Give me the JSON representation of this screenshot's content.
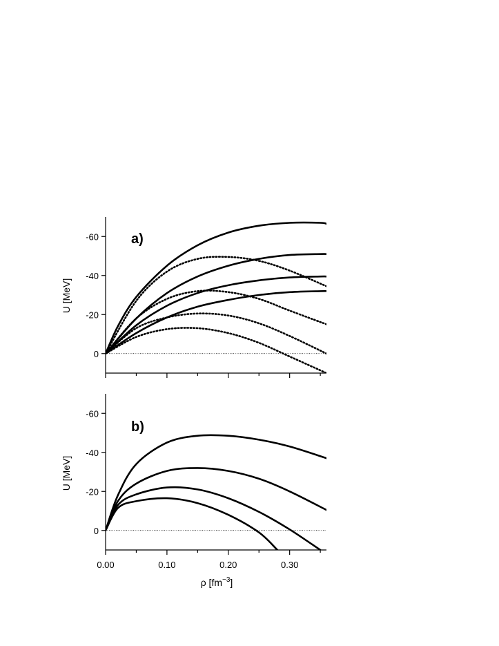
{
  "chart_data": [
    {
      "type": "line",
      "panel_label": "a)",
      "ylabel": "U [MeV]",
      "xlabel": "",
      "xlim": [
        0,
        0.36
      ],
      "ylim": [
        10,
        -70
      ],
      "y_ticks": [
        -60,
        -40,
        -20,
        0
      ],
      "y_tick_labels": [
        "-60",
        "-40",
        "-20",
        "0"
      ],
      "x_ticks": [
        0,
        0.05,
        0.1,
        0.15,
        0.2,
        0.25,
        0.3,
        0.35
      ],
      "x_tick_labels": [],
      "zero_line": true,
      "series": [
        {
          "style": "solid",
          "x": [
            0,
            0.02,
            0.05,
            0.1,
            0.15,
            0.2,
            0.25,
            0.3,
            0.35,
            0.36
          ],
          "y": [
            0,
            -14,
            -29,
            -45,
            -55.5,
            -62,
            -65.5,
            -67,
            -67,
            -66.5
          ]
        },
        {
          "style": "solid",
          "x": [
            0,
            0.05,
            0.1,
            0.15,
            0.2,
            0.25,
            0.3,
            0.35,
            0.36
          ],
          "y": [
            0,
            -18,
            -31,
            -39.5,
            -45,
            -48.5,
            -50.5,
            -51,
            -51
          ]
        },
        {
          "style": "solid",
          "x": [
            0,
            0.05,
            0.1,
            0.15,
            0.2,
            0.25,
            0.3,
            0.35,
            0.36
          ],
          "y": [
            0,
            -14.5,
            -24.5,
            -31,
            -35,
            -37.5,
            -39,
            -39.5,
            -39.5
          ]
        },
        {
          "style": "solid",
          "x": [
            0,
            0.05,
            0.1,
            0.15,
            0.2,
            0.25,
            0.3,
            0.35,
            0.36
          ],
          "y": [
            0,
            -10.5,
            -18.5,
            -24,
            -27.5,
            -30,
            -31.5,
            -32,
            -32
          ]
        },
        {
          "style": "dotted",
          "x": [
            0,
            0.05,
            0.1,
            0.15,
            0.2,
            0.25,
            0.3,
            0.36
          ],
          "y": [
            0,
            -27,
            -42,
            -48.5,
            -49.5,
            -47.5,
            -42.5,
            -34.5
          ]
        },
        {
          "style": "dotted",
          "x": [
            0,
            0.05,
            0.1,
            0.15,
            0.2,
            0.25,
            0.3,
            0.36
          ],
          "y": [
            0,
            -18,
            -28,
            -32,
            -31.5,
            -28,
            -22,
            -15
          ]
        },
        {
          "style": "dotted",
          "x": [
            0,
            0.05,
            0.1,
            0.15,
            0.2,
            0.25,
            0.3,
            0.36
          ],
          "y": [
            0,
            -13,
            -18.5,
            -20.5,
            -19.5,
            -15.5,
            -9,
            0
          ]
        },
        {
          "style": "dotted",
          "x": [
            0,
            0.05,
            0.1,
            0.15,
            0.2,
            0.25,
            0.3,
            0.36
          ],
          "y": [
            0,
            -8.5,
            -12.5,
            -13,
            -10.5,
            -5.5,
            1.5,
            10
          ]
        }
      ]
    },
    {
      "type": "line",
      "panel_label": "b)",
      "ylabel": "U [MeV]",
      "xlabel": "ρ [fm",
      "xlabel_sup": "−3",
      "xlabel_end": "]",
      "xlim": [
        0,
        0.36
      ],
      "ylim": [
        10,
        -70
      ],
      "y_ticks": [
        -60,
        -40,
        -20,
        0
      ],
      "y_tick_labels": [
        "-60",
        "-40",
        "-20",
        "0"
      ],
      "x_ticks": [
        0,
        0.05,
        0.1,
        0.15,
        0.2,
        0.25,
        0.3,
        0.35
      ],
      "x_tick_labels": [
        "0.00",
        "",
        "0.10",
        "",
        "0.20",
        "",
        "0.30",
        ""
      ],
      "zero_line": true,
      "series": [
        {
          "style": "solid",
          "x": [
            0,
            0.02,
            0.05,
            0.1,
            0.15,
            0.2,
            0.25,
            0.3,
            0.36
          ],
          "y": [
            0,
            -18,
            -34,
            -45,
            -48.5,
            -48.5,
            -46.5,
            -43,
            -37
          ]
        },
        {
          "style": "solid",
          "x": [
            0,
            0.02,
            0.05,
            0.1,
            0.15,
            0.2,
            0.25,
            0.3,
            0.36
          ],
          "y": [
            0,
            -15,
            -24,
            -30.5,
            -32,
            -30.5,
            -26.5,
            -20,
            -10.5
          ]
        },
        {
          "style": "solid",
          "x": [
            0,
            0.02,
            0.05,
            0.1,
            0.15,
            0.2,
            0.25,
            0.3,
            0.35
          ],
          "y": [
            0,
            -13,
            -18.5,
            -22,
            -21,
            -16.5,
            -9.5,
            -0.5,
            10
          ]
        },
        {
          "style": "solid",
          "x": [
            0,
            0.02,
            0.05,
            0.1,
            0.15,
            0.2,
            0.25,
            0.28
          ],
          "y": [
            0,
            -11.5,
            -15,
            -16.5,
            -14,
            -8,
            1,
            10
          ]
        }
      ]
    }
  ]
}
